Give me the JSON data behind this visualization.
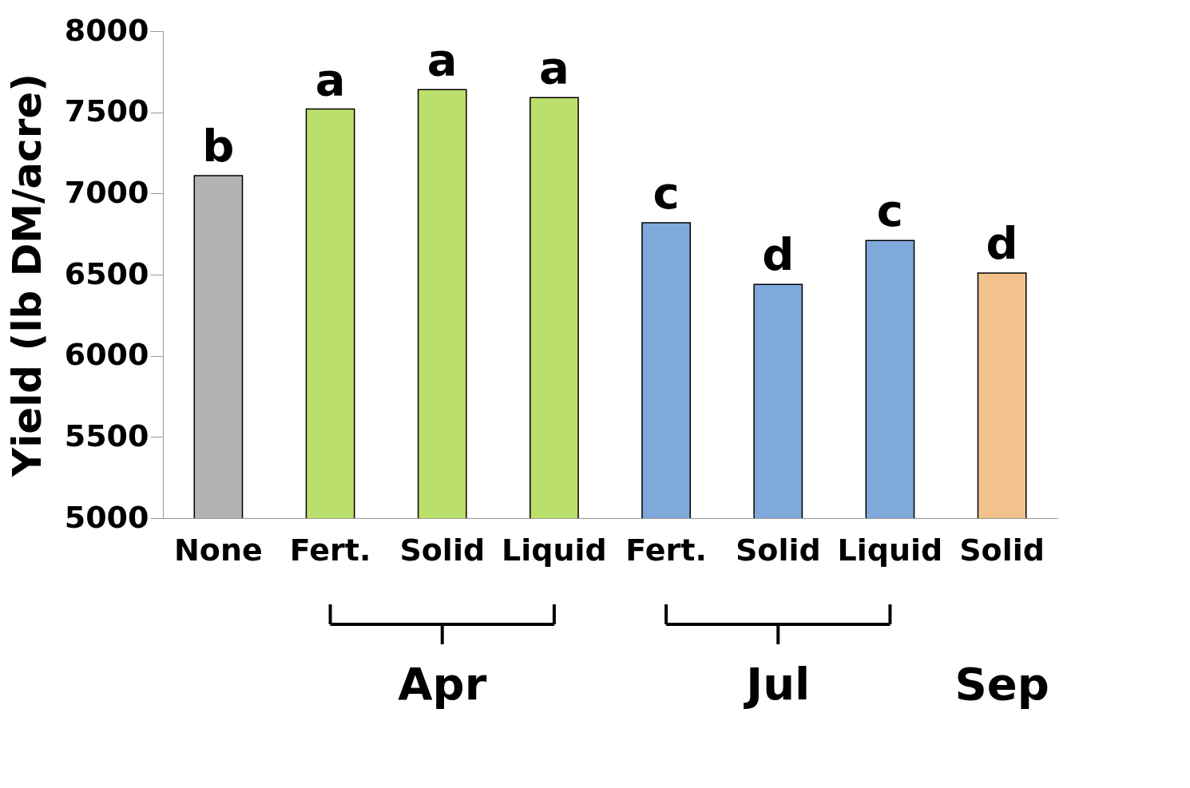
{
  "chart_data": {
    "type": "bar",
    "ylabel": "Yield (lb DM/acre)",
    "categories": [
      "None",
      "Fert.",
      "Solid",
      "Liquid",
      "Fert.",
      "Solid",
      "Liquid",
      "Solid"
    ],
    "values": [
      7110,
      7520,
      7640,
      7590,
      6820,
      6440,
      6710,
      6510
    ],
    "colors": [
      "#b3b3b3",
      "#badf6b",
      "#badf6b",
      "#badf6b",
      "#7fa9db",
      "#7fa9db",
      "#7fa9db",
      "#f3c28c"
    ],
    "value_labels": [
      "b",
      "a",
      "a",
      "a",
      "c",
      "d",
      "c",
      "d"
    ],
    "annotations": [
      "Apr",
      "Jul",
      "Sep"
    ],
    "ylim": [
      5000,
      8000
    ],
    "yticks": [
      5000,
      5500,
      6000,
      6500,
      7000,
      7500,
      8000
    ],
    "grid": false,
    "legend": false
  }
}
